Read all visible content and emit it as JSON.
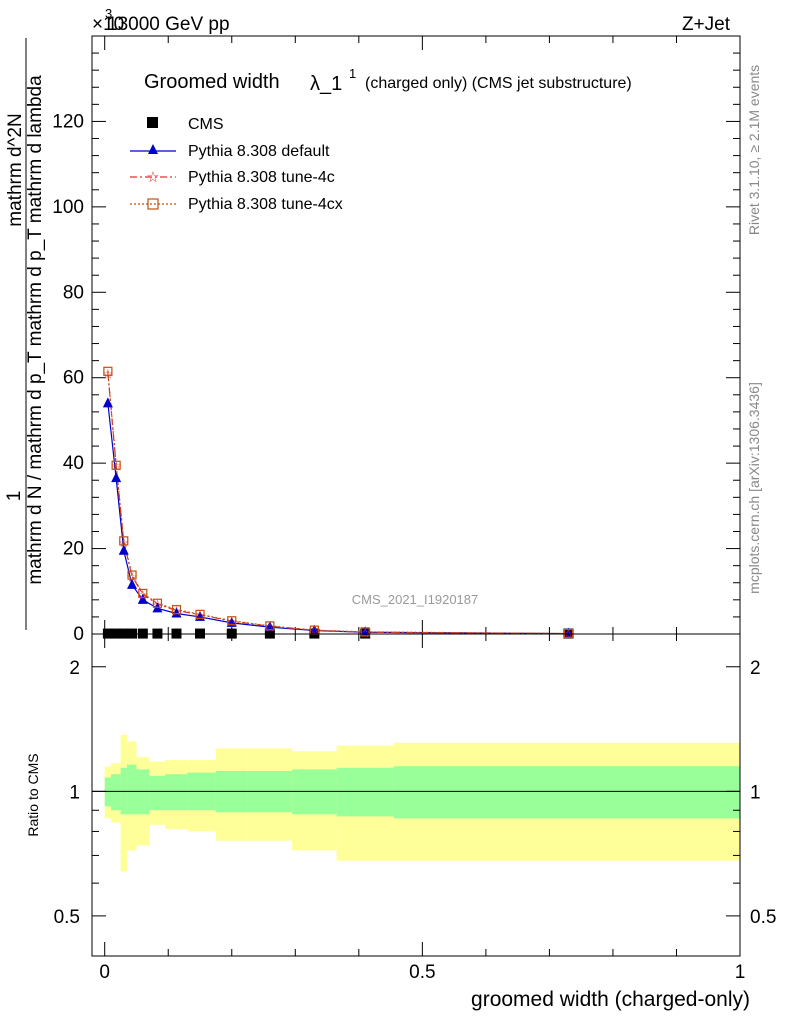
{
  "header": {
    "left": "13000 GeV pp",
    "right": "Z+Jet",
    "exponent": "×10"
  },
  "side_labels": {
    "rivet": "Rivet 3.1.10, ≥ 2.1M events",
    "mcplots": "mcplots.cern.ch [arXiv:1306.3436]"
  },
  "analysis_id": "CMS_2021_I1920187",
  "chart_data": [
    {
      "type": "line",
      "title_main": "Groomed width",
      "title_symbol": "λ_1",
      "title_sup": "1",
      "title_note": "(charged only) (CMS jet substructure)",
      "ylabel_parts": {
        "numerator": "1",
        "denominator": "mathrm d N / mathrm d p_T mathrm d p_T mathrm d lambda",
        "top": "mathrm d^2N"
      },
      "ylim": [
        0,
        140
      ],
      "yticks": [
        0,
        20,
        40,
        60,
        80,
        100,
        120
      ],
      "xlim": [
        -0.02,
        1.0
      ],
      "x": [
        0.005,
        0.018,
        0.03,
        0.043,
        0.06,
        0.083,
        0.113,
        0.15,
        0.2,
        0.26,
        0.33,
        0.41,
        0.73
      ],
      "series": [
        {
          "name": "CMS",
          "color": "#000000",
          "marker": "square",
          "values": [
            0.1,
            0.1,
            0.1,
            0.1,
            0.1,
            0.1,
            0.1,
            0.1,
            0.1,
            0.1,
            0.1,
            0.1,
            0.1
          ]
        },
        {
          "name": "Pythia 8.308 default",
          "color": "#0000cc",
          "marker": "triangle",
          "values": [
            54.0,
            36.5,
            19.5,
            11.5,
            8.0,
            6.0,
            4.8,
            4.0,
            2.6,
            1.6,
            0.8,
            0.4,
            0.1
          ]
        },
        {
          "name": "Pythia 8.308 tune-4c",
          "color": "#e03030",
          "marker": "star",
          "values": [
            61.0,
            39.5,
            21.5,
            13.5,
            9.3,
            7.0,
            5.5,
            4.5,
            3.0,
            1.8,
            0.9,
            0.4,
            0.1
          ]
        },
        {
          "name": "Pythia 8.308 tune-4cx",
          "color": "#c05010",
          "marker": "open-square",
          "values": [
            61.5,
            39.5,
            21.8,
            13.8,
            9.5,
            7.2,
            5.7,
            4.6,
            3.1,
            1.9,
            0.9,
            0.5,
            0.1
          ]
        }
      ]
    },
    {
      "type": "area",
      "ylabel": "Ratio to CMS",
      "ylim": [
        0.4,
        2.4
      ],
      "ylog": true,
      "yticks": [
        0.5,
        1,
        2
      ],
      "ytick_labels": [
        "0.5",
        "1",
        "2"
      ],
      "xlim": [
        -0.02,
        1.0
      ],
      "xticks": [
        0,
        0.5,
        1
      ],
      "xtick_labels": [
        "0",
        "0.5",
        "1"
      ],
      "xlabel": "groomed width (charged-only)",
      "bin_edges": [
        0.0,
        0.01,
        0.025,
        0.035,
        0.05,
        0.07,
        0.095,
        0.13,
        0.175,
        0.225,
        0.295,
        0.365,
        0.455,
        1.0
      ],
      "band_inner": {
        "color": "#99ff99",
        "low": [
          0.92,
          0.9,
          0.88,
          0.88,
          0.88,
          0.9,
          0.9,
          0.9,
          0.89,
          0.89,
          0.88,
          0.87,
          0.86
        ],
        "high": [
          1.08,
          1.1,
          1.14,
          1.16,
          1.13,
          1.09,
          1.1,
          1.11,
          1.12,
          1.12,
          1.13,
          1.14,
          1.15
        ]
      },
      "band_outer": {
        "color": "#ffff99",
        "low": [
          0.86,
          0.84,
          0.64,
          0.72,
          0.74,
          0.83,
          0.81,
          0.8,
          0.76,
          0.76,
          0.72,
          0.68,
          0.68
        ],
        "high": [
          1.15,
          1.17,
          1.37,
          1.32,
          1.21,
          1.18,
          1.19,
          1.19,
          1.27,
          1.27,
          1.25,
          1.29,
          1.31
        ]
      }
    }
  ]
}
